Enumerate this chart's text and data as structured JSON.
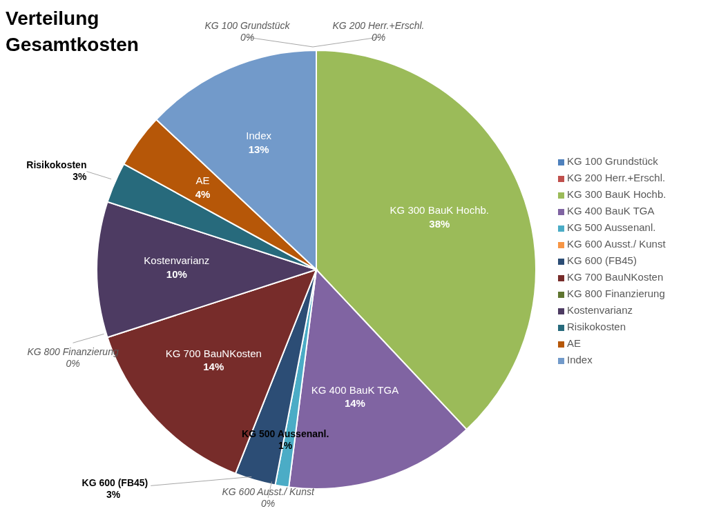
{
  "chart_data": {
    "type": "pie",
    "title": "Verteilung Gesamtkosten",
    "categories": [
      "KG 100 Grundstück",
      "KG 200 Herr.+Erschl.",
      "KG 300 BauK Hochb.",
      "KG 400 BauK TGA",
      "KG 500 Aussenanl.",
      "KG 600 Ausst./ Kunst",
      "KG 600 (FB45)",
      "KG 700 BauNKosten",
      "KG 800 Finanzierung",
      "Kostenvarianz",
      "Risikokosten",
      "AE",
      "Index"
    ],
    "values": [
      0,
      0,
      38,
      14,
      1,
      0,
      3,
      14,
      0,
      10,
      3,
      4,
      13
    ],
    "value_labels": [
      "0%",
      "0%",
      "38%",
      "14%",
      "1%",
      "0%",
      "3%",
      "14%",
      "0%",
      "10%",
      "3%",
      "4%",
      "13%"
    ],
    "colors": [
      "#4f81bd",
      "#c0504d",
      "#9bbb59",
      "#8064a2",
      "#4bacc6",
      "#f79646",
      "#2c4d75",
      "#772c2a",
      "#5f7530",
      "#4d3b62",
      "#276a7c",
      "#b65708",
      "#729aca"
    ],
    "legend": "right"
  }
}
